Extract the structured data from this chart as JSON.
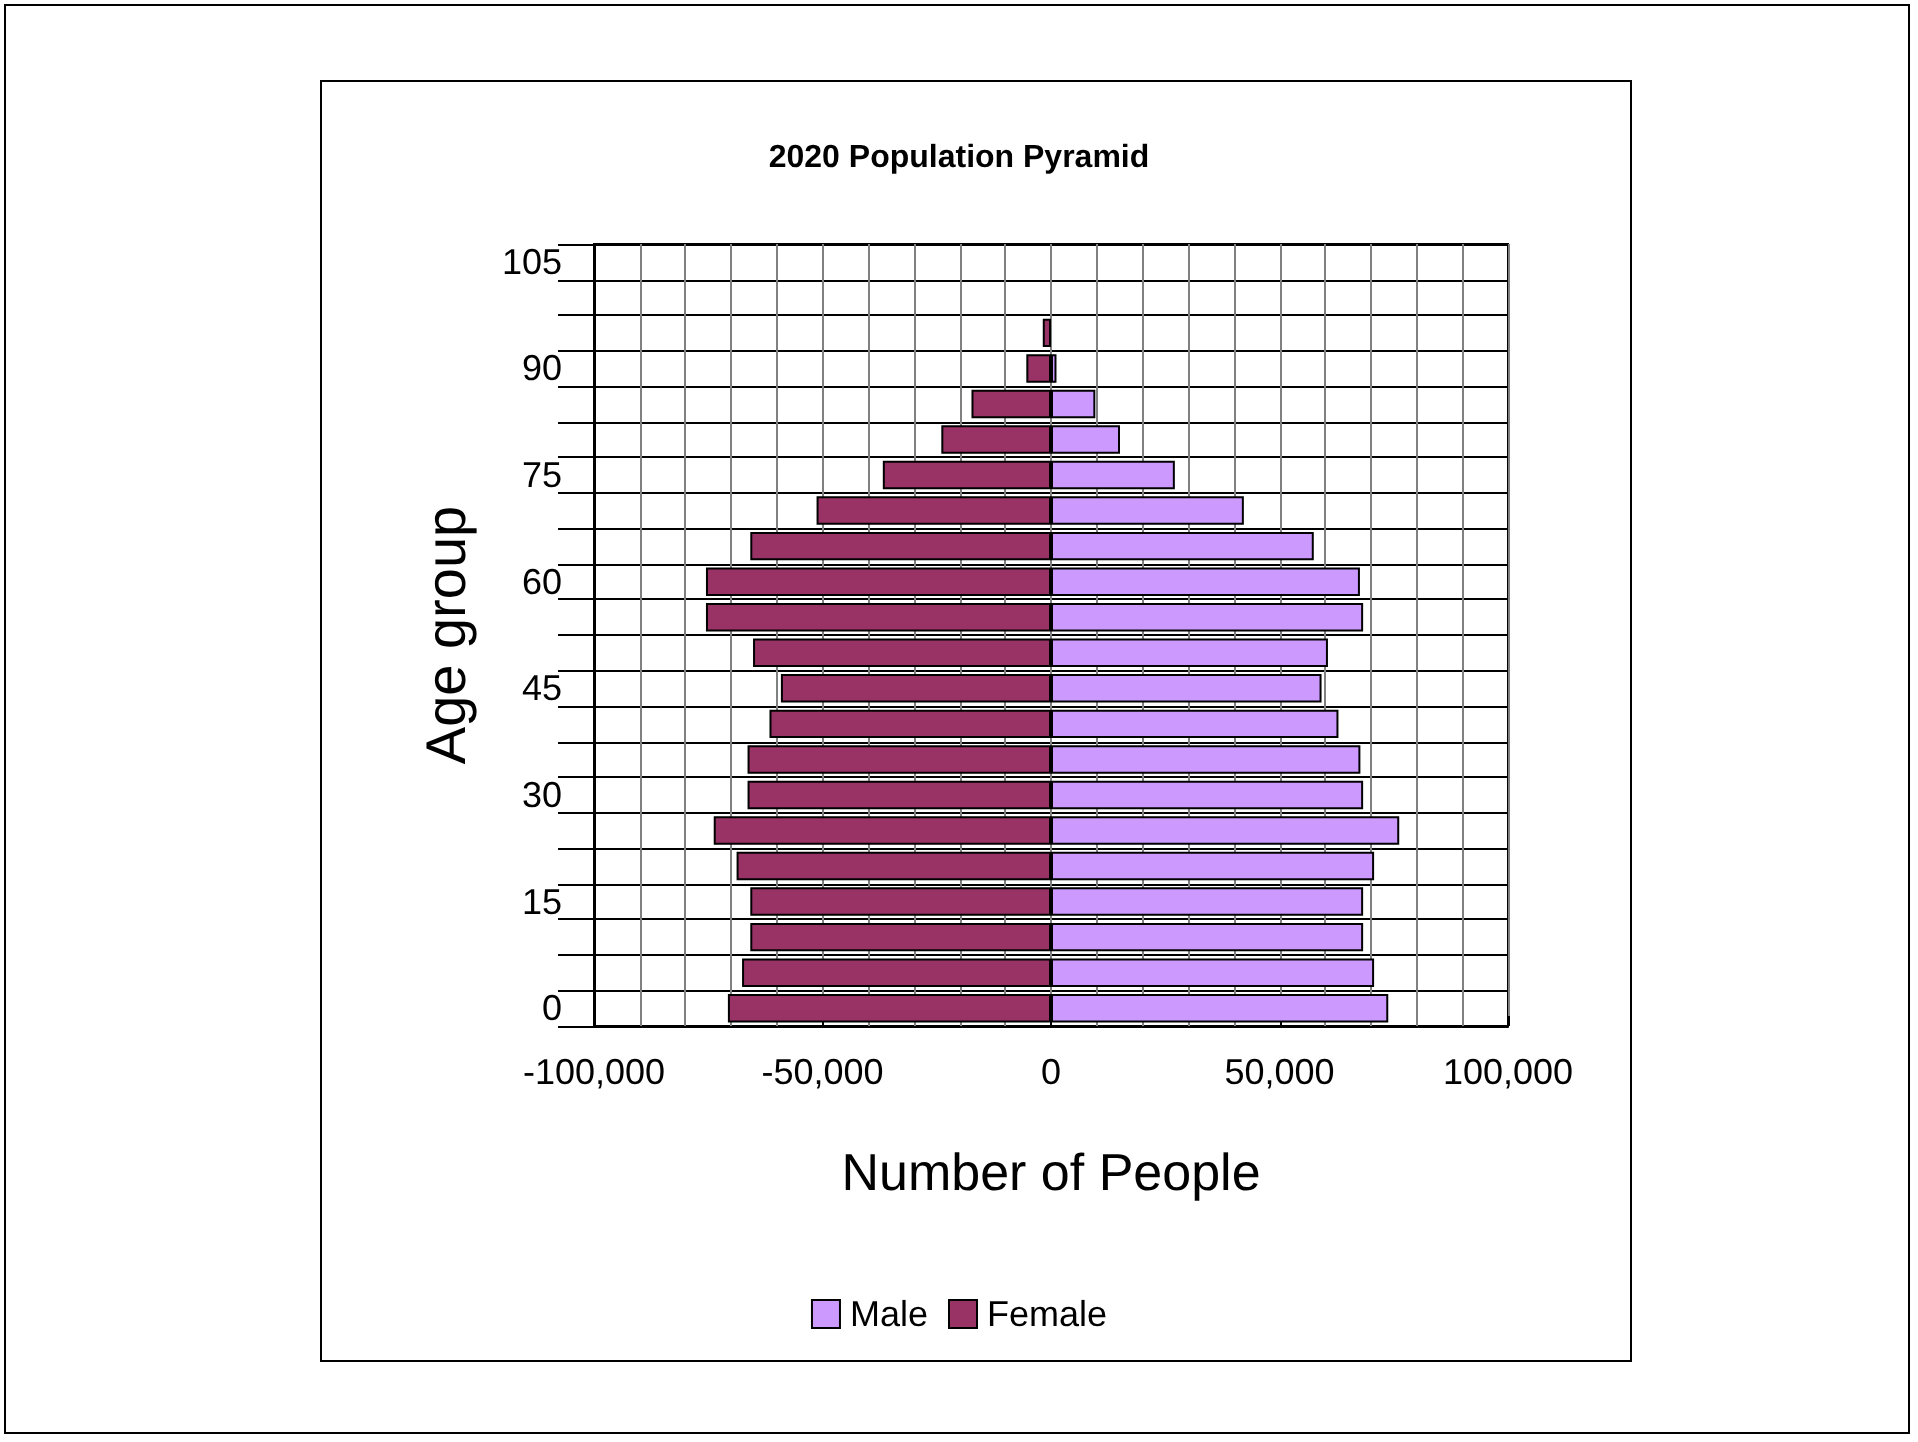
{
  "chart_data": {
    "type": "bar",
    "orientation": "horizontal",
    "stacked": true,
    "title": "2020 Population Pyramid",
    "xlabel": "Number of People",
    "ylabel": "Age group",
    "categories": [
      "105",
      null,
      null,
      "90",
      null,
      null,
      "75",
      null,
      null,
      "60",
      null,
      null,
      "45",
      null,
      null,
      "30",
      null,
      null,
      "15",
      null,
      null,
      "0"
    ],
    "series": [
      {
        "name": "Male",
        "color": "#cc99ff",
        "values": [
          null,
          null,
          null,
          1200,
          9700,
          15100,
          27100,
          42200,
          57500,
          67600,
          68300,
          60600,
          59200,
          62900,
          67700,
          68300,
          76200,
          70700,
          68300,
          68300,
          70700,
          73800
        ]
      },
      {
        "name": "Female",
        "color": "#993366",
        "values": [
          null,
          null,
          -1800,
          -5400,
          -17400,
          -24000,
          -36800,
          -51300,
          -65800,
          -75500,
          -75500,
          -65200,
          -59100,
          -61600,
          -66400,
          -66400,
          -73800,
          -68800,
          -65800,
          -65800,
          -67600,
          -70700
        ]
      }
    ],
    "xlim": [
      -100000,
      100000
    ],
    "xticks": [
      {
        "value": -100000,
        "label": "-100,000"
      },
      {
        "value": -50000,
        "label": "-50,000"
      },
      0,
      {
        "value": 50000,
        "label": "50,000"
      },
      {
        "value": 100000,
        "label": "100,000"
      }
    ],
    "grid": true,
    "legend": "bottom"
  }
}
